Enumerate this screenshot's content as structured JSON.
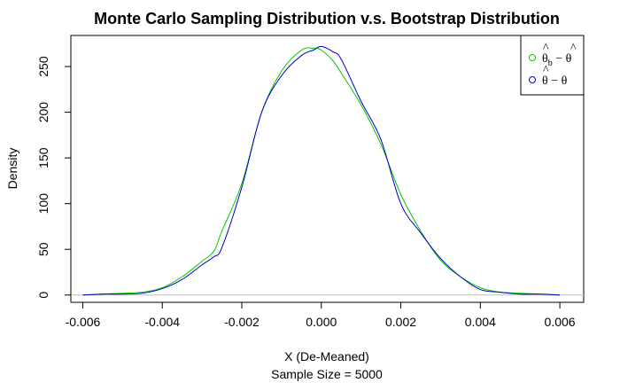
{
  "chart_data": {
    "type": "line",
    "title": "Monte Carlo Sampling Distribution v.s. Bootstrap Distribution",
    "xlabel": "X (De-Meaned)",
    "subtitle": "Sample Size = 5000",
    "ylabel": "Density",
    "xlim": [
      -0.0063,
      0.0066
    ],
    "ylim": [
      -8,
      284
    ],
    "x_ticks": [
      -0.006,
      -0.004,
      -0.002,
      0.0,
      0.002,
      0.004,
      0.006
    ],
    "x_tick_labels": [
      "-0.006",
      "-0.004",
      "-0.002",
      "0.000",
      "0.002",
      "0.004",
      "0.006"
    ],
    "y_ticks": [
      0,
      50,
      100,
      150,
      200,
      250
    ],
    "y_tick_labels": [
      "0",
      "50",
      "100",
      "150",
      "200",
      "250"
    ],
    "baseline": 0,
    "legend_position": "top-right",
    "series": [
      {
        "name": "θ̂_b − θ̂",
        "legend_main": "θ",
        "legend_sub": "b",
        "legend_rest": "−",
        "legend_second": "θ",
        "color": "#00cc00",
        "x": [
          -0.006,
          -0.0055,
          -0.005,
          -0.0045,
          -0.004,
          -0.0035,
          -0.003,
          -0.0027,
          -0.0025,
          -0.002,
          -0.0015,
          -0.001,
          -0.0005,
          -0.0002,
          0.0,
          0.0003,
          0.0005,
          0.001,
          0.0015,
          0.002,
          0.0025,
          0.003,
          0.0035,
          0.004,
          0.0045,
          0.005,
          0.0055,
          0.006
        ],
        "y": [
          0,
          1,
          2,
          3,
          8,
          20,
          37,
          48,
          70,
          122,
          200,
          245,
          268,
          270,
          268,
          256,
          243,
          208,
          165,
          110,
          70,
          38,
          20,
          8,
          3,
          2,
          1,
          0
        ]
      },
      {
        "name": "θ̂ − θ",
        "legend_main": "θ",
        "legend_sub": "",
        "legend_rest": "−",
        "legend_second": "θ",
        "color": "#0000cc",
        "x": [
          -0.006,
          -0.0055,
          -0.005,
          -0.0045,
          -0.004,
          -0.0035,
          -0.003,
          -0.0027,
          -0.0025,
          -0.002,
          -0.0015,
          -0.001,
          -0.0005,
          -0.0002,
          0.0,
          0.0003,
          0.0005,
          0.001,
          0.0015,
          0.002,
          0.0025,
          0.003,
          0.0035,
          0.004,
          0.0045,
          0.005,
          0.0055,
          0.006
        ],
        "y": [
          0,
          1,
          1,
          2,
          7,
          17,
          33,
          42,
          52,
          118,
          200,
          240,
          262,
          268,
          272,
          266,
          258,
          212,
          170,
          100,
          68,
          40,
          20,
          6,
          3,
          1,
          1,
          0
        ]
      }
    ]
  }
}
